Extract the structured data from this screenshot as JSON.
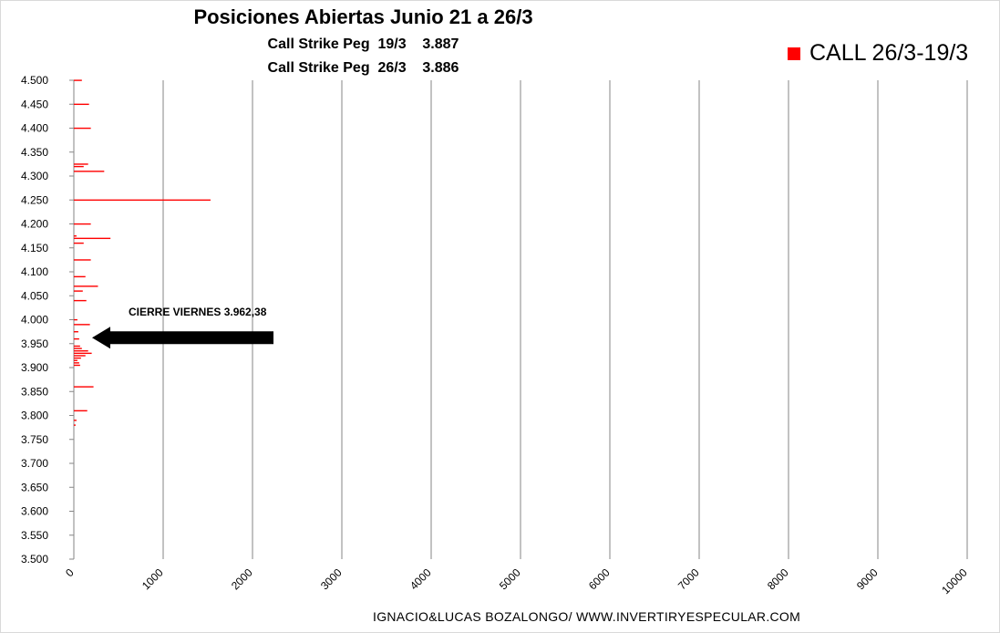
{
  "chart_data": {
    "type": "bar",
    "orientation": "horizontal",
    "title": "Posiciones Abiertas Junio 21 a 26/3",
    "subtitles": [
      "Call Strike Peg  19/3    3.887",
      "Call Strike Peg  26/3    3.886"
    ],
    "legend": {
      "position": "top-right",
      "entries": [
        {
          "label": "CALL 26/3-19/3",
          "color": "#ff0000"
        }
      ]
    },
    "xlim": [
      0,
      10000
    ],
    "x_ticks": [
      "0",
      "1000",
      "2000",
      "3000",
      "4000",
      "5000",
      "6000",
      "7000",
      "8000",
      "9000",
      "10000"
    ],
    "ylim": [
      3500,
      4500
    ],
    "y_ticks": [
      "3.500",
      "3.550",
      "3.600",
      "3.650",
      "3.700",
      "3.750",
      "3.800",
      "3.850",
      "3.900",
      "3.950",
      "4.000",
      "4.050",
      "4.100",
      "4.150",
      "4.200",
      "4.250",
      "4.300",
      "4.350",
      "4.400",
      "4.450",
      "4.500"
    ],
    "grid": true,
    "series": [
      {
        "name": "CALL 26/3-19/3",
        "color": "#ff0000",
        "points": [
          [
            4500,
            90
          ],
          [
            4450,
            170
          ],
          [
            4400,
            190
          ],
          [
            4325,
            160
          ],
          [
            4320,
            110
          ],
          [
            4310,
            340
          ],
          [
            4250,
            1530
          ],
          [
            4200,
            190
          ],
          [
            4175,
            30
          ],
          [
            4170,
            410
          ],
          [
            4160,
            110
          ],
          [
            4125,
            190
          ],
          [
            4090,
            130
          ],
          [
            4070,
            270
          ],
          [
            4060,
            100
          ],
          [
            4040,
            140
          ],
          [
            4000,
            40
          ],
          [
            3990,
            180
          ],
          [
            3975,
            50
          ],
          [
            3960,
            60
          ],
          [
            3945,
            70
          ],
          [
            3940,
            90
          ],
          [
            3935,
            160
          ],
          [
            3930,
            200
          ],
          [
            3925,
            130
          ],
          [
            3920,
            80
          ],
          [
            3915,
            40
          ],
          [
            3910,
            60
          ],
          [
            3905,
            70
          ],
          [
            3860,
            220
          ],
          [
            3810,
            150
          ],
          [
            3790,
            30
          ],
          [
            3780,
            20
          ]
        ]
      }
    ],
    "annotation": {
      "text": "CIERRE VIERNES 3.962,38",
      "arrow_to_y": 3962.38
    }
  },
  "footer": "IGNACIO&LUCAS BOZALONGO/ WWW.INVERTIRYESPECULAR.COM"
}
